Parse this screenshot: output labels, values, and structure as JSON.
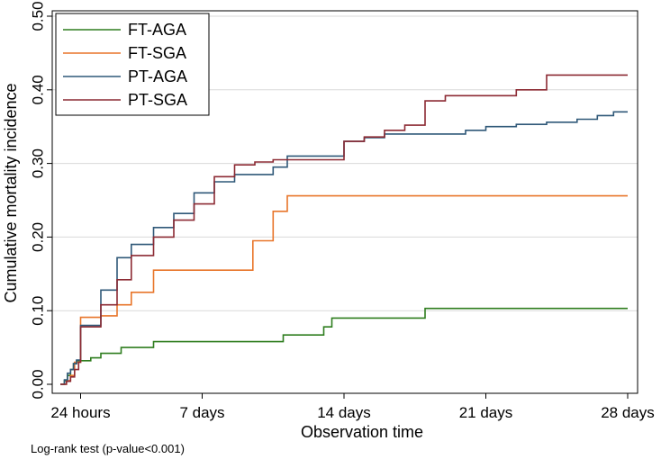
{
  "chart_data": {
    "type": "line",
    "step": true,
    "title": "",
    "xlabel": "Observation time",
    "ylabel": "Cumulative mortality incidence",
    "xlim": [
      0,
      28
    ],
    "ylim": [
      0,
      0.5
    ],
    "x_ticks": [
      {
        "value": 1,
        "label": "24 hours"
      },
      {
        "value": 7,
        "label": "7 days"
      },
      {
        "value": 14,
        "label": "14 days"
      },
      {
        "value": 21,
        "label": "21 days"
      },
      {
        "value": 28,
        "label": "28 days"
      }
    ],
    "y_ticks": [
      {
        "value": 0.0,
        "label": "0.00"
      },
      {
        "value": 0.1,
        "label": "0.10"
      },
      {
        "value": 0.2,
        "label": "0.20"
      },
      {
        "value": 0.3,
        "label": "0.30"
      },
      {
        "value": 0.4,
        "label": "0.40"
      },
      {
        "value": 0.5,
        "label": "0.50"
      }
    ],
    "grid": true,
    "legend_position": "top-left",
    "note": "Log-rank test (p-value<0.001)",
    "series": [
      {
        "name": "FT-AGA",
        "color": "#2e7d1e",
        "points": [
          [
            0,
            0
          ],
          [
            0.2,
            0.005
          ],
          [
            0.35,
            0.012
          ],
          [
            0.5,
            0.02
          ],
          [
            0.65,
            0.028
          ],
          [
            0.8,
            0.032
          ],
          [
            1.5,
            0.036
          ],
          [
            2,
            0.042
          ],
          [
            3,
            0.05
          ],
          [
            4.6,
            0.058
          ],
          [
            11,
            0.067
          ],
          [
            13,
            0.078
          ],
          [
            13.4,
            0.09
          ],
          [
            18,
            0.103
          ],
          [
            28,
            0.103
          ]
        ]
      },
      {
        "name": "FT-SGA",
        "color": "#e8752a",
        "points": [
          [
            0,
            0
          ],
          [
            0.3,
            0.005
          ],
          [
            0.5,
            0.012
          ],
          [
            0.7,
            0.03
          ],
          [
            1,
            0.091
          ],
          [
            2,
            0.093
          ],
          [
            2.8,
            0.108
          ],
          [
            3.5,
            0.125
          ],
          [
            4.6,
            0.155
          ],
          [
            9.5,
            0.195
          ],
          [
            10.5,
            0.235
          ],
          [
            11.2,
            0.256
          ],
          [
            28,
            0.256
          ]
        ]
      },
      {
        "name": "PT-AGA",
        "color": "#2f5878",
        "points": [
          [
            0,
            0
          ],
          [
            0.2,
            0.006
          ],
          [
            0.35,
            0.015
          ],
          [
            0.5,
            0.02
          ],
          [
            0.65,
            0.028
          ],
          [
            0.8,
            0.033
          ],
          [
            1,
            0.08
          ],
          [
            2,
            0.128
          ],
          [
            2.8,
            0.172
          ],
          [
            3.5,
            0.19
          ],
          [
            4.6,
            0.213
          ],
          [
            5.6,
            0.232
          ],
          [
            6.6,
            0.26
          ],
          [
            7.6,
            0.275
          ],
          [
            8.6,
            0.285
          ],
          [
            10.5,
            0.295
          ],
          [
            11.2,
            0.31
          ],
          [
            14,
            0.33
          ],
          [
            15,
            0.335
          ],
          [
            16,
            0.34
          ],
          [
            20,
            0.345
          ],
          [
            21,
            0.35
          ],
          [
            22.5,
            0.353
          ],
          [
            24,
            0.356
          ],
          [
            25.5,
            0.36
          ],
          [
            26.5,
            0.365
          ],
          [
            27.3,
            0.37
          ],
          [
            28,
            0.37
          ]
        ]
      },
      {
        "name": "PT-SGA",
        "color": "#8c2a33",
        "points": [
          [
            0,
            0
          ],
          [
            0.3,
            0.004
          ],
          [
            0.5,
            0.01
          ],
          [
            0.7,
            0.02
          ],
          [
            0.9,
            0.03
          ],
          [
            1,
            0.078
          ],
          [
            2,
            0.108
          ],
          [
            2.8,
            0.142
          ],
          [
            3.5,
            0.175
          ],
          [
            4.6,
            0.2
          ],
          [
            5.6,
            0.223
          ],
          [
            6.6,
            0.245
          ],
          [
            7.6,
            0.282
          ],
          [
            8.6,
            0.298
          ],
          [
            9.6,
            0.302
          ],
          [
            10.5,
            0.305
          ],
          [
            14,
            0.33
          ],
          [
            15,
            0.336
          ],
          [
            16,
            0.345
          ],
          [
            17,
            0.352
          ],
          [
            18,
            0.385
          ],
          [
            19,
            0.392
          ],
          [
            22.5,
            0.4
          ],
          [
            24,
            0.42
          ],
          [
            28,
            0.42
          ]
        ]
      }
    ]
  }
}
